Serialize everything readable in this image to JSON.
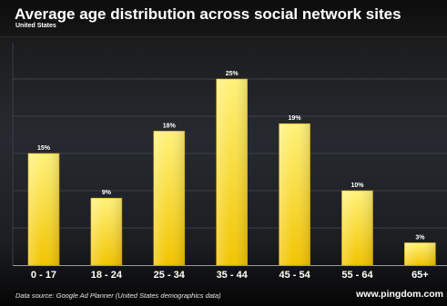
{
  "chart_data": {
    "type": "bar",
    "title": "Average age distribution across social network sites",
    "subtitle": "United States",
    "categories": [
      "0 - 17",
      "18 - 24",
      "25 - 34",
      "35 - 44",
      "45 - 54",
      "55 - 64",
      "65+"
    ],
    "values": [
      15,
      9,
      18,
      25,
      19,
      10,
      3
    ],
    "value_labels": [
      "15%",
      "9%",
      "18%",
      "25%",
      "19%",
      "10%",
      "3%"
    ],
    "ylim": [
      0,
      25
    ],
    "grid": true,
    "xlabel": "",
    "ylabel": ""
  },
  "footer": {
    "source": "Data source: Google Ad Planner (United States demographics data)",
    "brand": "www.pingdom.com"
  },
  "colors": {
    "bar_top": "#fff27a",
    "bar_bottom": "#f2c400",
    "bar_edge": "#d7a600",
    "gridline": "#3c4048",
    "axis": "#9a9a9a"
  }
}
